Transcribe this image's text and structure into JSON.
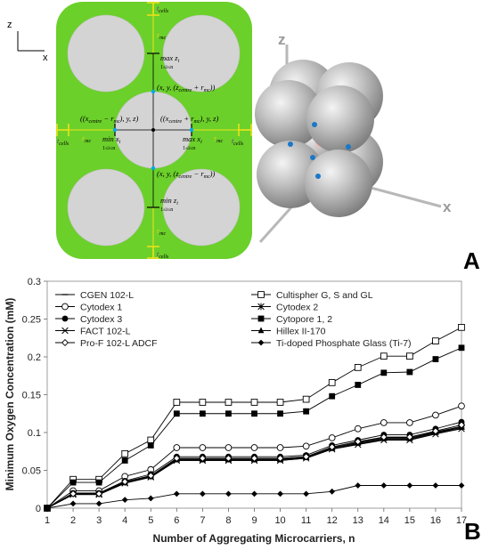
{
  "panel_a": {
    "letter": "A",
    "axes2d": {
      "z": "z",
      "x": "x"
    },
    "axes3d": {
      "z": "z",
      "x": "x"
    },
    "labels": {
      "t_cells": "t",
      "t_cells_sub": "cells",
      "r_mc": "r",
      "r_mc_sub": "mc",
      "max_z": "max z",
      "max_z_sub": "i",
      "range_sub": "1≤i≤n",
      "min_z": "min z",
      "min_x": "min x",
      "max_x": "max x",
      "x_sub": "i",
      "point_top": "(x, y, (z",
      "point_top_tail": "centre",
      "point_top_end": " + r",
      "point_top_close": "mc",
      "point_bottom_end": " − r",
      "point_left": "((x",
      "point_left_tail": "centre",
      "point_left_end": " − r",
      "point_left_close": "mc",
      "point_left_suffix": "), y, z)",
      "point_right_end": " + r",
      "point_right_suffix": "), y, z)",
      "close_paren": "))"
    }
  },
  "panel_b": {
    "letter": "B"
  },
  "chart_data": {
    "type": "line",
    "xlabel": "Number of Aggregating Microcarriers, n",
    "ylabel": "Minimum Oxygen Concentration (mM)",
    "xlim": [
      1,
      17
    ],
    "ylim": [
      0,
      0.3
    ],
    "xticks": [
      1,
      2,
      3,
      4,
      5,
      6,
      7,
      8,
      9,
      10,
      11,
      12,
      13,
      14,
      15,
      16,
      17
    ],
    "yticks": [
      0,
      0.05,
      0.1,
      0.15,
      0.2,
      0.25,
      0.3
    ],
    "ytick_labels": [
      "0",
      "0.05",
      "0.1",
      "0.15",
      "0.2",
      "0.25",
      "0.3"
    ],
    "grid": false,
    "legend_position": "top-inside",
    "x": [
      1,
      2,
      3,
      4,
      5,
      6,
      7,
      8,
      9,
      10,
      11,
      12,
      13,
      14,
      15,
      16,
      17
    ],
    "series": [
      {
        "name": "CGEN 102-L",
        "marker": "dash",
        "values": [
          0,
          0.018,
          0.018,
          0.033,
          0.041,
          0.063,
          0.063,
          0.063,
          0.063,
          0.063,
          0.066,
          0.078,
          0.085,
          0.091,
          0.091,
          0.099,
          0.106
        ]
      },
      {
        "name": "Cultispher G, S and GL",
        "marker": "open-square",
        "values": [
          0,
          0.038,
          0.038,
          0.072,
          0.09,
          0.14,
          0.14,
          0.14,
          0.14,
          0.14,
          0.144,
          0.166,
          0.186,
          0.201,
          0.201,
          0.221,
          0.239
        ]
      },
      {
        "name": "Cytodex 1",
        "marker": "open-circle",
        "values": [
          0,
          0.023,
          0.023,
          0.042,
          0.051,
          0.08,
          0.08,
          0.08,
          0.08,
          0.08,
          0.082,
          0.093,
          0.105,
          0.113,
          0.113,
          0.123,
          0.135
        ]
      },
      {
        "name": "Cytodex 2",
        "marker": "asterisk",
        "values": [
          0,
          0.019,
          0.019,
          0.034,
          0.042,
          0.065,
          0.065,
          0.065,
          0.065,
          0.065,
          0.068,
          0.08,
          0.087,
          0.093,
          0.093,
          0.101,
          0.108
        ]
      },
      {
        "name": "Cytodex 3",
        "marker": "filled-circle",
        "values": [
          0,
          0.02,
          0.02,
          0.036,
          0.045,
          0.068,
          0.068,
          0.068,
          0.068,
          0.068,
          0.07,
          0.083,
          0.09,
          0.097,
          0.097,
          0.105,
          0.114
        ]
      },
      {
        "name": "Cytopore 1, 2",
        "marker": "filled-square",
        "values": [
          0,
          0.034,
          0.034,
          0.063,
          0.083,
          0.125,
          0.125,
          0.125,
          0.125,
          0.125,
          0.128,
          0.148,
          0.163,
          0.179,
          0.18,
          0.197,
          0.212
        ]
      },
      {
        "name": "FACT 102-L",
        "marker": "cross",
        "values": [
          0,
          0.018,
          0.018,
          0.033,
          0.041,
          0.063,
          0.063,
          0.063,
          0.063,
          0.063,
          0.066,
          0.078,
          0.084,
          0.09,
          0.09,
          0.098,
          0.105
        ]
      },
      {
        "name": "Hillex II-170",
        "marker": "filled-triangle",
        "values": [
          0,
          0.019,
          0.019,
          0.034,
          0.042,
          0.064,
          0.064,
          0.064,
          0.064,
          0.064,
          0.067,
          0.079,
          0.086,
          0.092,
          0.092,
          0.1,
          0.107
        ]
      },
      {
        "name": "Pro-F 102-L ADCF",
        "marker": "open-diamond",
        "values": [
          0,
          0.019,
          0.019,
          0.035,
          0.043,
          0.066,
          0.066,
          0.066,
          0.066,
          0.066,
          0.068,
          0.081,
          0.088,
          0.094,
          0.094,
          0.102,
          0.11
        ]
      },
      {
        "name": "Ti-doped Phosphate Glass (Ti-7)",
        "marker": "filled-diamond",
        "values": [
          0,
          0.006,
          0.006,
          0.011,
          0.013,
          0.019,
          0.019,
          0.019,
          0.019,
          0.019,
          0.019,
          0.022,
          0.03,
          0.03,
          0.03,
          0.03,
          0.03
        ]
      }
    ]
  }
}
